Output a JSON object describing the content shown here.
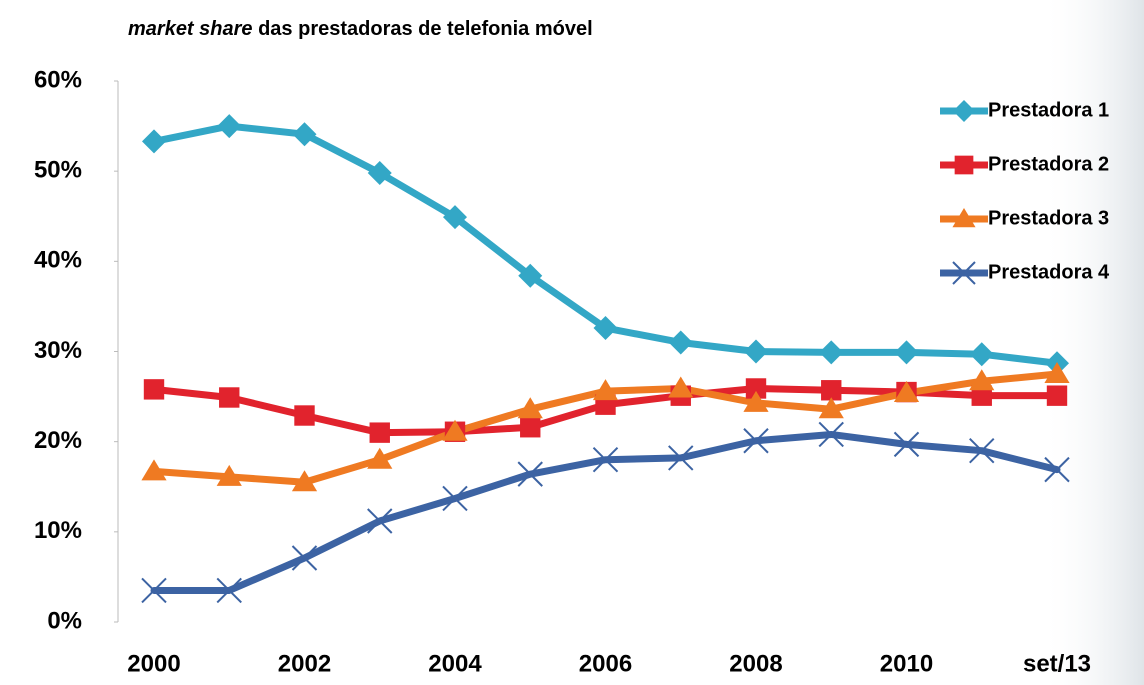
{
  "chart_data": {
    "type": "line",
    "title_emphasis": "market share",
    "title": "das prestadoras de telefonia móvel",
    "categories": [
      "2000",
      null,
      "2002",
      null,
      "2004",
      null,
      "2006",
      null,
      "2008",
      null,
      "2010",
      null,
      "set/13"
    ],
    "series": [
      {
        "name": "Prestadora 1",
        "color": "#33a7c6",
        "marker": "diamond",
        "values": [
          53.3,
          55.0,
          54.1,
          49.8,
          44.9,
          38.4,
          32.6,
          31.0,
          30.0,
          29.9,
          29.9,
          29.7,
          28.7
        ]
      },
      {
        "name": "Prestadora 2",
        "color": "#e1232d",
        "marker": "square",
        "values": [
          25.8,
          24.9,
          22.9,
          21.0,
          21.1,
          21.6,
          24.1,
          25.1,
          25.9,
          25.7,
          25.5,
          25.1,
          25.1
        ]
      },
      {
        "name": "Prestadora 3",
        "color": "#ef7a22",
        "marker": "triangle",
        "values": [
          16.7,
          16.1,
          15.5,
          18.0,
          21.1,
          23.6,
          25.6,
          25.9,
          24.3,
          23.6,
          25.4,
          26.7,
          27.5
        ]
      },
      {
        "name": "Prestadora 4",
        "color": "#3c63a3",
        "marker": "x",
        "values": [
          3.5,
          3.5,
          7.1,
          11.2,
          13.7,
          16.4,
          18.0,
          18.2,
          20.1,
          20.8,
          19.7,
          19.0,
          16.9
        ]
      }
    ],
    "ylim": [
      0,
      60
    ],
    "yticks": [
      {
        "value": 0,
        "label": "0%"
      },
      {
        "value": 10,
        "label": "10%"
      },
      {
        "value": 20,
        "label": "20%"
      },
      {
        "value": 30,
        "label": "30%"
      },
      {
        "value": 40,
        "label": "40%"
      },
      {
        "value": 50,
        "label": "50%"
      },
      {
        "value": 60,
        "label": "60%"
      }
    ],
    "grid": false,
    "legend": "top right"
  }
}
